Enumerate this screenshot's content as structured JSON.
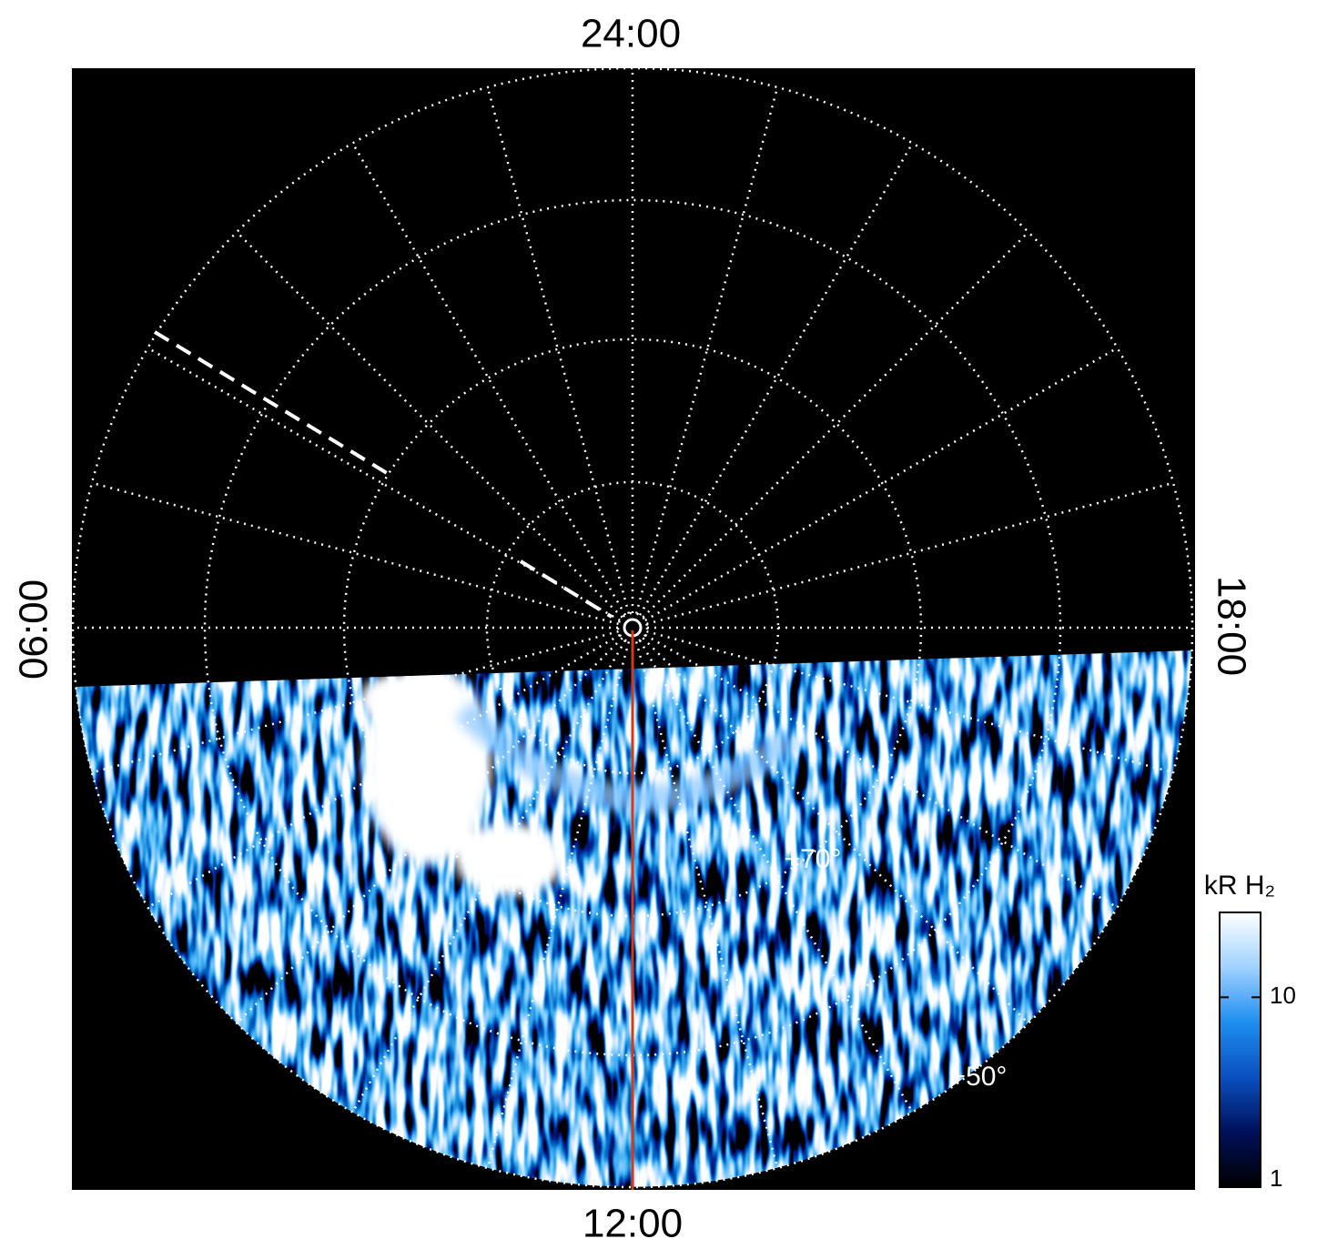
{
  "chart_data": {
    "type": "polar-map",
    "local_time_labels": {
      "top": "24:00",
      "left": "06:00",
      "bottom": "12:00",
      "right": "18:00"
    },
    "latitude_labels": [
      "+70°",
      "+50°"
    ],
    "colorbar": {
      "label": "kR H₂",
      "log_scale": true,
      "lim": [
        1,
        28
      ],
      "ticks": [
        1,
        10
      ],
      "colors": [
        "#000000",
        "#00105a",
        "#0a4fc0",
        "#1e8ef0",
        "#9fd2ff",
        "#ffffff"
      ]
    },
    "meridian_color": "#d83a10"
  }
}
